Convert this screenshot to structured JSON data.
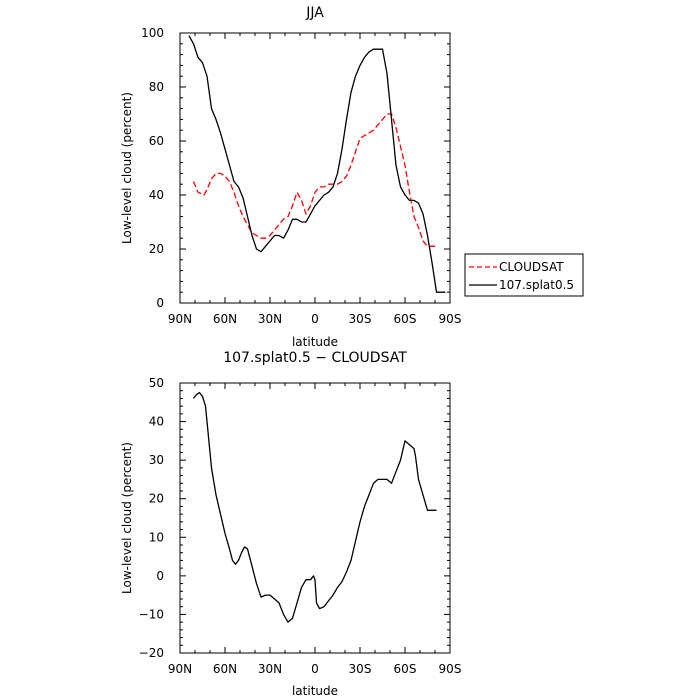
{
  "chart_data": [
    {
      "type": "line",
      "title": "JJA",
      "xlabel": "latitude",
      "ylabel": "Low-level cloud (percent)",
      "xlim": [
        90,
        -90
      ],
      "ylim": [
        0,
        100
      ],
      "x_ticks": [
        90,
        60,
        30,
        0,
        -30,
        -60,
        -90
      ],
      "x_tick_labels": [
        "90N",
        "60N",
        "30N",
        "0",
        "30S",
        "60S",
        "90S"
      ],
      "y_ticks": [
        0,
        20,
        40,
        60,
        80,
        100
      ],
      "y_tick_labels": [
        "0",
        "20",
        "40",
        "60",
        "80",
        "100"
      ],
      "legend_position": "right-bottom-outside",
      "series": [
        {
          "name": "CLOUDSAT",
          "color": "#ff0000",
          "dash": "dashed",
          "x": [
            81,
            78,
            74,
            72,
            69,
            66,
            63,
            60,
            57,
            54,
            51,
            48,
            45,
            42,
            39,
            36,
            33,
            30,
            27,
            24,
            21,
            18,
            15,
            12,
            9,
            6,
            3,
            0,
            -3,
            -6,
            -9,
            -12,
            -15,
            -18,
            -21,
            -24,
            -27,
            -30,
            -33,
            -36,
            -39,
            -42,
            -45,
            -48,
            -51,
            -54,
            -57,
            -60,
            -63,
            -66,
            -69,
            -72,
            -75,
            -78,
            -81
          ],
          "y": [
            45,
            41,
            40,
            42,
            46,
            48,
            48,
            47,
            45,
            41,
            36,
            32,
            29,
            26,
            25,
            24,
            24,
            25,
            27,
            29,
            31,
            32,
            36,
            41,
            38,
            33,
            36,
            41,
            43,
            43,
            44,
            44,
            44,
            45,
            47,
            51,
            56,
            61,
            62,
            63,
            64,
            66,
            68,
            70,
            70,
            65,
            58,
            51,
            41,
            32,
            28,
            23,
            21,
            21,
            21
          ]
        },
        {
          "name": "107.splat0.5",
          "color": "#000000",
          "dash": "solid",
          "x": [
            84,
            81,
            78,
            75,
            72,
            69,
            66,
            63,
            60,
            57,
            54,
            51,
            48,
            45,
            42,
            39,
            36,
            33,
            30,
            27,
            24,
            21,
            18,
            15,
            12,
            9,
            6,
            3,
            0,
            -3,
            -6,
            -9,
            -12,
            -15,
            -18,
            -21,
            -24,
            -27,
            -30,
            -33,
            -36,
            -39,
            -42,
            -45,
            -48,
            -51,
            -54,
            -57,
            -60,
            -63,
            -66,
            -69,
            -72,
            -75,
            -78,
            -81,
            -84,
            -87
          ],
          "y": [
            99,
            96,
            91,
            89,
            84,
            72,
            68,
            63,
            57,
            51,
            45,
            43,
            39,
            32,
            25,
            20,
            19,
            21,
            23,
            25,
            25,
            24,
            27,
            31,
            31,
            30,
            30,
            33,
            36,
            38,
            40,
            41,
            43,
            48,
            57,
            68,
            78,
            84,
            88,
            91,
            93,
            94,
            94,
            94,
            85,
            68,
            51,
            43,
            40,
            38,
            38,
            37,
            33,
            25,
            15,
            4,
            4,
            4
          ]
        }
      ]
    },
    {
      "type": "line",
      "title": "107.splat0.5 − CLOUDSAT",
      "xlabel": "latitude",
      "ylabel": "Low-level cloud (percent)",
      "xlim": [
        90,
        -90
      ],
      "ylim": [
        -20,
        50
      ],
      "x_ticks": [
        90,
        60,
        30,
        0,
        -30,
        -60,
        -90
      ],
      "x_tick_labels": [
        "90N",
        "60N",
        "30N",
        "0",
        "30S",
        "60S",
        "90S"
      ],
      "y_ticks": [
        -20,
        -10,
        0,
        10,
        20,
        30,
        40,
        50
      ],
      "y_tick_labels": [
        "−20",
        "−10",
        "0",
        "10",
        "20",
        "30",
        "40",
        "50"
      ],
      "series": [
        {
          "name": "",
          "color": "#000000",
          "dash": "solid",
          "x": [
            81,
            79,
            77,
            75,
            73,
            71,
            69,
            66,
            63,
            60,
            57,
            55,
            53,
            51,
            49,
            47,
            45,
            42,
            39,
            36,
            33,
            30,
            27,
            24,
            21,
            18,
            15,
            12,
            9,
            6,
            3,
            1,
            0,
            -1,
            -3,
            -6,
            -9,
            -12,
            -15,
            -18,
            -21,
            -24,
            -27,
            -30,
            -33,
            -36,
            -39,
            -42,
            -45,
            -48,
            -51,
            -54,
            -57,
            -60,
            -63,
            -66,
            -67,
            -69,
            -72,
            -75,
            -78,
            -81
          ],
          "y": [
            46,
            47,
            47.5,
            46.5,
            44,
            36,
            28,
            21,
            16,
            11,
            7,
            4,
            3,
            4,
            6,
            7.5,
            7,
            2.5,
            -2,
            -5.5,
            -5,
            -5,
            -6,
            -7,
            -10,
            -12,
            -11,
            -7,
            -3,
            -1,
            -1,
            0,
            -1,
            -7,
            -8.5,
            -8,
            -6.5,
            -5,
            -3,
            -1.5,
            1,
            4,
            9,
            14,
            18,
            21,
            24,
            25,
            25,
            25,
            24,
            27,
            30,
            35,
            34,
            33,
            31,
            25,
            21,
            17,
            17,
            17
          ]
        }
      ]
    }
  ]
}
